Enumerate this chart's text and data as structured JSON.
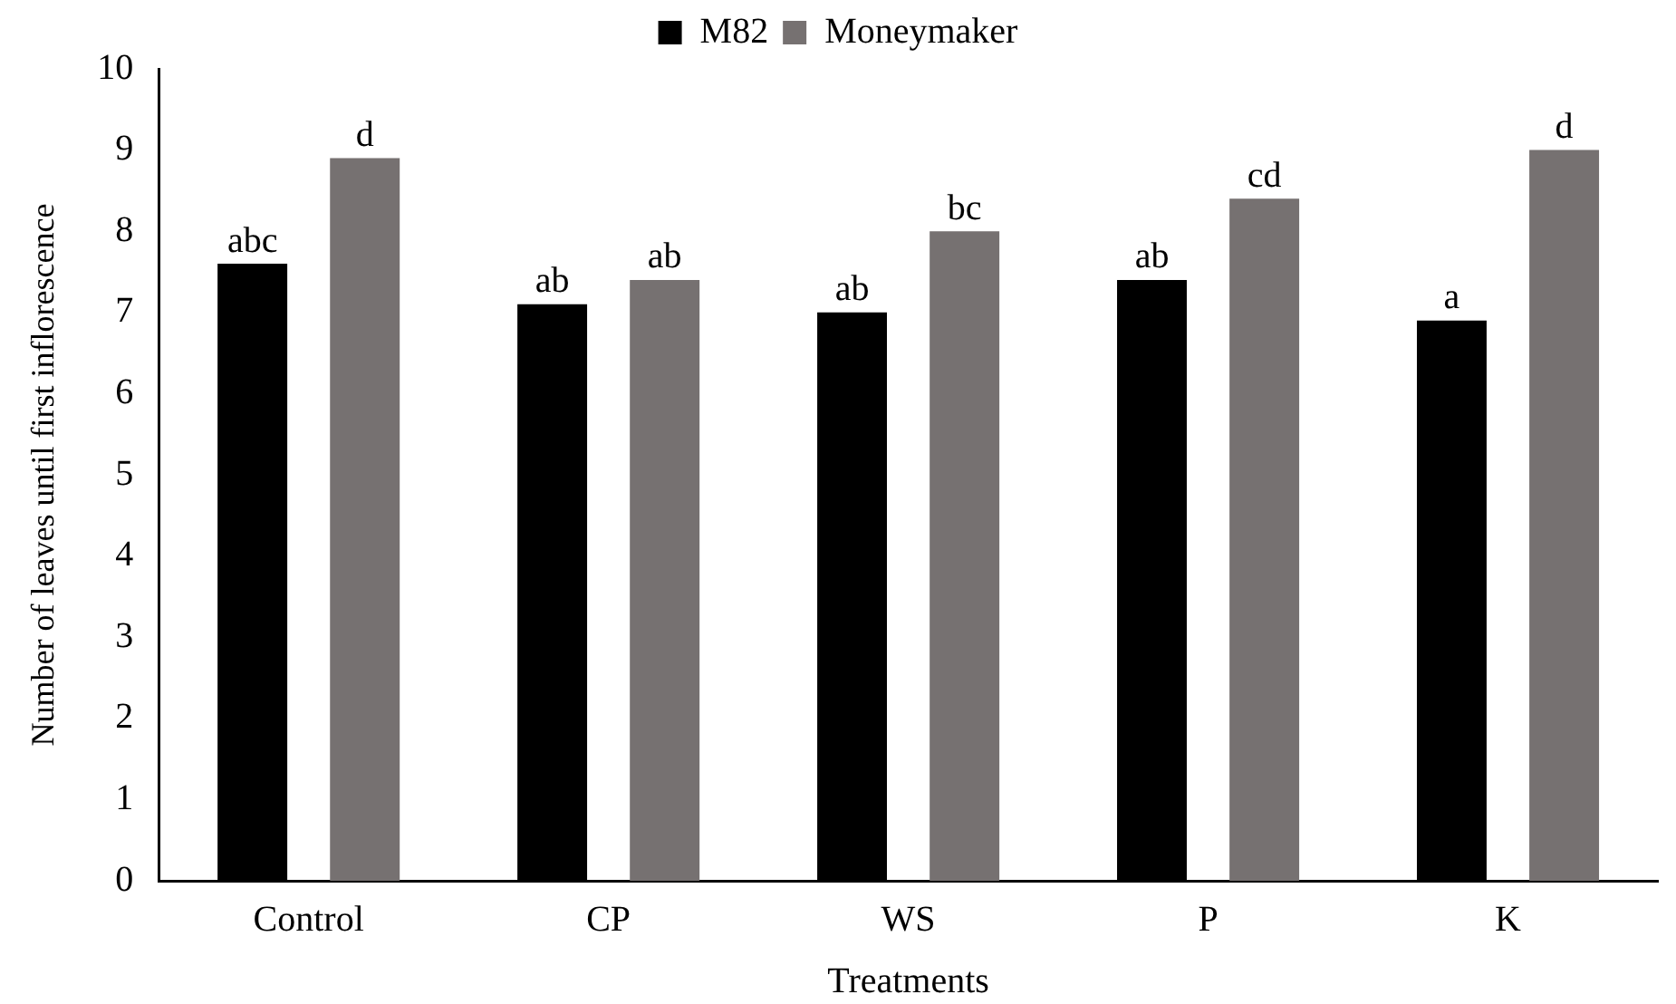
{
  "chart_data": {
    "type": "bar",
    "xlabel": "Treatments",
    "ylabel": "Number of leaves until first inflorescence",
    "categories": [
      "Control",
      "CP",
      "WS",
      "P",
      "K"
    ],
    "series": [
      {
        "name": "M82",
        "color": "#000000",
        "values": [
          7.6,
          7.1,
          7.0,
          7.4,
          6.9
        ],
        "value_labels": [
          "abc",
          "ab",
          "ab",
          "ab",
          "a"
        ]
      },
      {
        "name": "Moneymaker",
        "color": "#767171",
        "values": [
          8.9,
          7.4,
          8.0,
          8.4,
          9.0
        ],
        "value_labels": [
          "d",
          "ab",
          "bc",
          "cd",
          "d"
        ]
      }
    ],
    "ylim": [
      0,
      10
    ],
    "yticks": [
      0,
      1,
      2,
      3,
      4,
      5,
      6,
      7,
      8,
      9,
      10
    ],
    "grid": false,
    "legend": "top"
  }
}
